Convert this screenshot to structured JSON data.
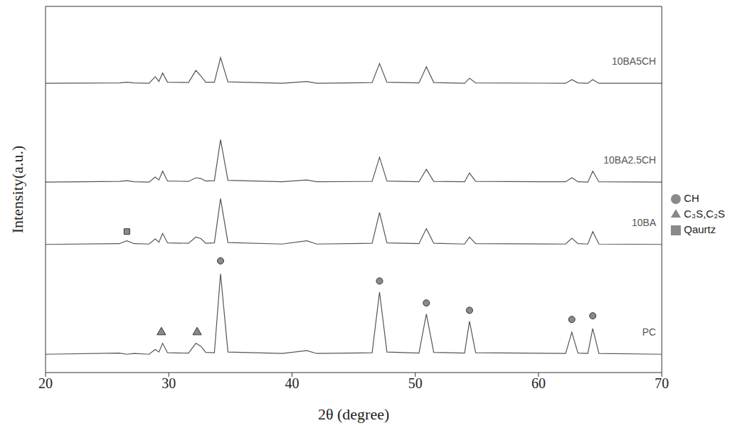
{
  "chart_data": {
    "type": "line",
    "x_label": "2θ (degree)",
    "y_label": "Intensity(a.u.)",
    "xlim": [
      20,
      70
    ],
    "xticks": [
      20,
      30,
      40,
      50,
      60,
      70
    ],
    "ylim": [
      0,
      100
    ],
    "tick_labels": "x",
    "legend": "right",
    "x": [
      20,
      26,
      26.6,
      27.2,
      28.4,
      28.9,
      29.2,
      29.5,
      29.9,
      31.6,
      32.2,
      32.6,
      33.0,
      33.7,
      34.2,
      34.8,
      39.2,
      41.2,
      42.0,
      46.5,
      47.1,
      47.7,
      50.3,
      50.9,
      51.5,
      54.0,
      54.4,
      54.9,
      62.2,
      62.7,
      63.2,
      64.0,
      64.4,
      64.9,
      70
    ],
    "series": [
      {
        "name": "PC",
        "color": "#555555",
        "values": [
          5,
          5.3,
          5,
          5.2,
          5,
          6.3,
          5.6,
          8,
          5.4,
          5.3,
          8,
          7.2,
          5.5,
          5.4,
          27,
          5.6,
          5.2,
          6,
          5.2,
          5.4,
          22,
          5.6,
          5.3,
          16,
          5.5,
          5.3,
          14,
          5.4,
          5.2,
          11,
          5.3,
          5.2,
          12,
          5.2,
          5
        ]
      },
      {
        "name": "10BA",
        "color": "#555555",
        "values": [
          35,
          35.2,
          36,
          35.2,
          35.1,
          36.5,
          35.6,
          38,
          35.4,
          35.3,
          37,
          36.6,
          35.3,
          35.4,
          47.5,
          35.5,
          35.1,
          36,
          35.1,
          35.3,
          43.7,
          35.4,
          35.2,
          39.3,
          35.3,
          35.1,
          37,
          35.2,
          35.1,
          36.7,
          35.2,
          35.1,
          38.5,
          35.1,
          35
        ]
      },
      {
        "name": "10BA2.5CH",
        "color": "#555555",
        "values": [
          52,
          52.2,
          52.4,
          52.1,
          52,
          53.4,
          52.6,
          55,
          52.3,
          52.2,
          53.2,
          53,
          52.3,
          52.4,
          63.6,
          52.5,
          52.1,
          52.6,
          52.1,
          52.2,
          58.8,
          52.3,
          52.1,
          55.5,
          52.2,
          52.1,
          54.5,
          52.2,
          52.1,
          53.2,
          52.1,
          52,
          55,
          52.1,
          52
        ]
      },
      {
        "name": "10BA5CH",
        "color": "#555555",
        "values": [
          79,
          79.1,
          79.3,
          79.1,
          79,
          80.8,
          79.5,
          81.8,
          79.3,
          79.2,
          82.5,
          81,
          79.3,
          79.3,
          86,
          79.4,
          79,
          79.5,
          79,
          79.2,
          84.4,
          79.3,
          79.1,
          83.5,
          79.2,
          79,
          80.4,
          79.1,
          79,
          80,
          79.1,
          79,
          80,
          79,
          79
        ]
      }
    ],
    "phases": [
      {
        "name": "C₃S,C₂S",
        "marker": "triangle",
        "color": "#8a8a8a",
        "points": [
          {
            "x": 29.4,
            "y": 11
          },
          {
            "x": 32.3,
            "y": 11
          }
        ]
      },
      {
        "name": "CH",
        "marker": "circle",
        "color": "#8a8a8a",
        "points": [
          {
            "x": 34.2,
            "y": 30.5
          },
          {
            "x": 47.1,
            "y": 25
          },
          {
            "x": 50.9,
            "y": 19
          },
          {
            "x": 54.4,
            "y": 17
          },
          {
            "x": 62.7,
            "y": 14.5
          },
          {
            "x": 64.4,
            "y": 15.5
          }
        ]
      },
      {
        "name": "Qaurtz",
        "marker": "square",
        "color": "#8a8a8a",
        "points": [
          {
            "x": 26.6,
            "y": 38.5
          }
        ]
      }
    ]
  }
}
